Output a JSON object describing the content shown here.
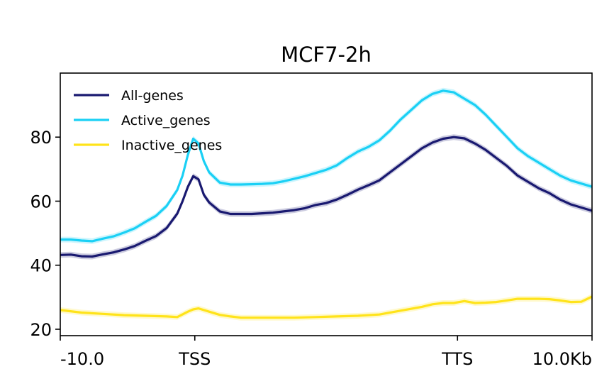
{
  "chart_data": {
    "type": "line",
    "title": "MCF7-2h",
    "xlabel": "",
    "ylabel": "",
    "x_range": [
      0,
      100
    ],
    "ylim": [
      18,
      100
    ],
    "x_ticks": [
      {
        "pos": 0,
        "label": "-10.0"
      },
      {
        "pos": 25.3,
        "label": "TSS"
      },
      {
        "pos": 74.7,
        "label": "TTS"
      },
      {
        "pos": 100,
        "label": "10.0Kb"
      }
    ],
    "y_ticks": [
      20,
      40,
      60,
      80
    ],
    "grid": false,
    "legend_position": "top-left",
    "series": [
      {
        "name": "All-genes",
        "color": "#191970",
        "x": [
          0,
          2,
          4,
          6,
          8,
          10,
          12,
          14,
          16,
          18,
          20,
          22,
          23,
          24,
          25,
          26,
          27,
          28,
          30,
          32,
          34,
          36,
          38,
          40,
          42,
          44,
          46,
          48,
          50,
          52,
          54,
          56,
          58,
          60,
          62,
          64,
          66,
          68,
          70,
          72,
          74,
          76,
          78,
          80,
          82,
          84,
          86,
          88,
          90,
          92,
          94,
          96,
          98,
          100
        ],
        "y": [
          43.2,
          43.3,
          42.8,
          42.7,
          43.4,
          44.0,
          44.9,
          46.0,
          47.6,
          49.1,
          51.6,
          56.1,
          60.0,
          64.5,
          67.8,
          66.8,
          62.0,
          59.6,
          56.8,
          56.0,
          56.0,
          56.0,
          56.2,
          56.4,
          56.8,
          57.2,
          57.8,
          58.8,
          59.4,
          60.5,
          62.0,
          63.6,
          65.0,
          66.5,
          69.0,
          71.5,
          74.0,
          76.5,
          78.3,
          79.5,
          80.0,
          79.6,
          78.0,
          76.0,
          73.5,
          71.0,
          68.0,
          66.0,
          64.0,
          62.5,
          60.5,
          59.0,
          58.0,
          57.0
        ]
      },
      {
        "name": "Active_genes",
        "color": "#1ad0f5",
        "x": [
          0,
          2,
          4,
          6,
          8,
          10,
          12,
          14,
          16,
          18,
          20,
          22,
          23,
          24,
          25,
          26,
          27,
          28,
          30,
          32,
          34,
          36,
          38,
          40,
          42,
          44,
          46,
          48,
          50,
          52,
          54,
          56,
          58,
          60,
          62,
          64,
          66,
          68,
          70,
          72,
          74,
          76,
          78,
          80,
          82,
          84,
          86,
          88,
          90,
          92,
          94,
          96,
          98,
          100
        ],
        "y": [
          48.0,
          48.0,
          47.7,
          47.5,
          48.3,
          49.0,
          50.2,
          51.5,
          53.5,
          55.4,
          58.5,
          63.5,
          68.0,
          74.5,
          79.5,
          78.0,
          72.5,
          69.0,
          65.8,
          65.2,
          65.2,
          65.3,
          65.4,
          65.6,
          66.2,
          67.0,
          67.8,
          68.8,
          69.8,
          71.2,
          73.5,
          75.5,
          77.0,
          79.0,
          82.0,
          85.5,
          88.5,
          91.5,
          93.5,
          94.5,
          94.0,
          92.0,
          90.0,
          87.0,
          83.5,
          80.0,
          76.5,
          74.0,
          72.0,
          70.0,
          68.0,
          66.5,
          65.5,
          64.5
        ]
      },
      {
        "name": "Inactive_genes",
        "color": "#ffe31a",
        "x": [
          0,
          4,
          8,
          12,
          16,
          20,
          22,
          24,
          25,
          26,
          28,
          30,
          32,
          34,
          36,
          40,
          44,
          48,
          52,
          56,
          60,
          64,
          68,
          70,
          72,
          74,
          76,
          78,
          80,
          82,
          84,
          86,
          88,
          90,
          92,
          94,
          96,
          98,
          100
        ],
        "y": [
          26.0,
          25.2,
          24.8,
          24.4,
          24.2,
          24.0,
          23.8,
          25.5,
          26.2,
          26.5,
          25.5,
          24.5,
          24.0,
          23.6,
          23.6,
          23.6,
          23.6,
          23.8,
          24.0,
          24.2,
          24.6,
          25.8,
          27.0,
          27.8,
          28.2,
          28.2,
          28.8,
          28.2,
          28.3,
          28.5,
          29.0,
          29.5,
          29.5,
          29.5,
          29.4,
          29.0,
          28.5,
          28.6,
          30.2
        ]
      }
    ]
  }
}
